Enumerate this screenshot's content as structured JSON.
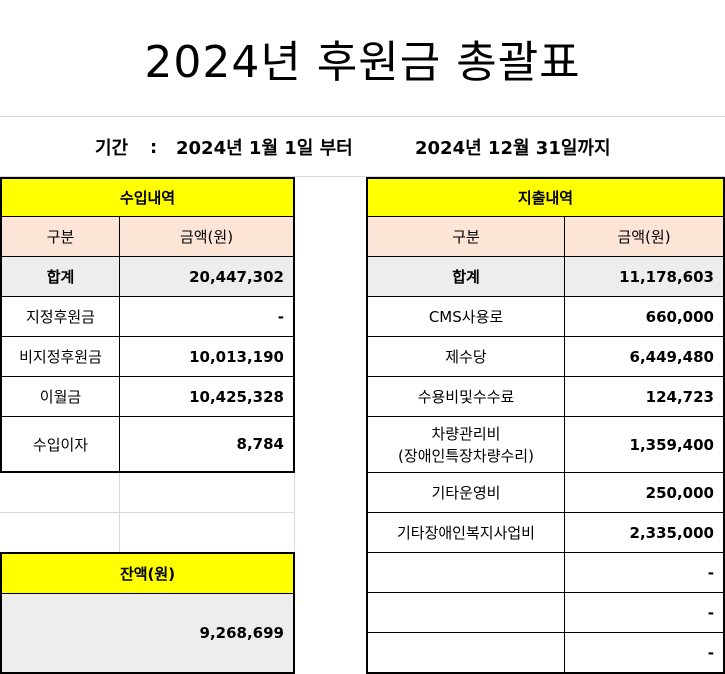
{
  "title": "2024년 후원금 총괄표",
  "period": {
    "label": "기간",
    "colon": ":",
    "start": "2024년 1월 1일 부터",
    "end": "2024년 12월 31일까지"
  },
  "income": {
    "header": "수입내역",
    "col_category": "구분",
    "col_amount": "금액(원)",
    "rows": [
      {
        "label": "합계",
        "amount": "20,447,302"
      },
      {
        "label": "지정후원금",
        "amount": "-"
      },
      {
        "label": "비지정후원금",
        "amount": "10,013,190"
      },
      {
        "label": "이월금",
        "amount": "10,425,328"
      },
      {
        "label": "수입이자",
        "amount": "8,784"
      }
    ]
  },
  "balance": {
    "header": "잔액(원)",
    "amount": "9,268,699"
  },
  "expense": {
    "header": "지출내역",
    "col_category": "구분",
    "col_amount": "금액(원)",
    "rows": [
      {
        "label": "합계",
        "amount": "11,178,603"
      },
      {
        "label": "CMS사용로",
        "amount": "660,000"
      },
      {
        "label": "제수당",
        "amount": "6,449,480"
      },
      {
        "label": "수용비및수수료",
        "amount": "124,723"
      },
      {
        "label": "차량관리비",
        "label2": "(장애인특장차량수리)",
        "amount": "1,359,400"
      },
      {
        "label": "기타운영비",
        "amount": "250,000"
      },
      {
        "label": "기타장애인복지사업비",
        "amount": "2,335,000"
      },
      {
        "label": "",
        "amount": "-"
      },
      {
        "label": "",
        "amount": "-"
      },
      {
        "label": "",
        "amount": "-"
      }
    ]
  },
  "colors": {
    "header_fill": "#ffff00",
    "subheader_fill": "#fce4d6",
    "total_fill": "#ededed"
  }
}
